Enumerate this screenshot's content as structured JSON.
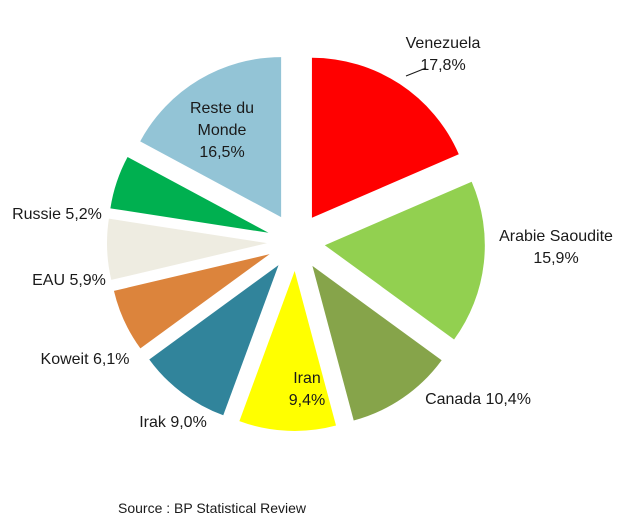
{
  "chart_data": {
    "type": "pie",
    "slices": [
      {
        "name": "Venezuela",
        "value": 17.8,
        "label": "17,8%",
        "color": "#ff0000"
      },
      {
        "name": "Arabie Saoudite",
        "value": 15.9,
        "label": "15,9%",
        "color": "#92d050"
      },
      {
        "name": "Canada",
        "value": 10.4,
        "label": "10,4%",
        "color": "#86a44a"
      },
      {
        "name": "Iran",
        "value": 9.4,
        "label": "9,4%",
        "color": "#ffff00"
      },
      {
        "name": "Irak",
        "value": 9.0,
        "label": "9,0%",
        "color": "#31849b"
      },
      {
        "name": "Koweit",
        "value": 6.1,
        "label": "6,1%",
        "color": "#dc843c"
      },
      {
        "name": "EAU",
        "value": 5.9,
        "label": "5,9%",
        "color": "#eeece1"
      },
      {
        "name": "Russie",
        "value": 5.2,
        "label": "5,2%",
        "color": "#00b050"
      },
      {
        "name": "Reste du Monde",
        "value": 16.5,
        "label": "16,5%",
        "color": "#93c4d6"
      }
    ]
  },
  "source": "Source : BP Statistical Review"
}
